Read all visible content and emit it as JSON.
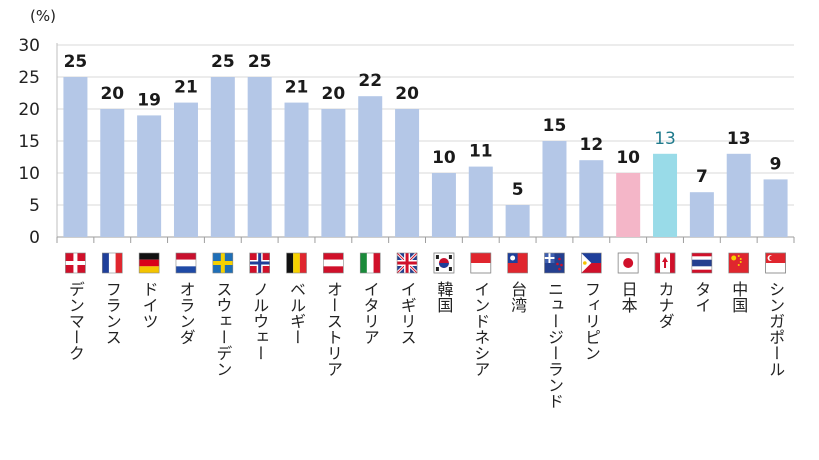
{
  "chart_data": {
    "type": "bar",
    "unit_label": "(%)",
    "ylim": [
      0,
      30
    ],
    "yticks": [
      0,
      5,
      10,
      15,
      20,
      25,
      30
    ],
    "grid": true,
    "categories": [
      "デンマーク",
      "フランス",
      "ドイツ",
      "オランダ",
      "スウェーデン",
      "ノルウェー",
      "ベルギー",
      "オーストリア",
      "イタリア",
      "イギリス",
      "韓国",
      "インドネシア",
      "台湾",
      "ニュージーランド",
      "フィリピン",
      "日本",
      "カナダ",
      "タイ",
      "中国",
      "シンガポール"
    ],
    "values": [
      25,
      20,
      19,
      21,
      25,
      25,
      21,
      20,
      22,
      20,
      10,
      11,
      5,
      15,
      12,
      10,
      13,
      7,
      13,
      9
    ],
    "value_labels": [
      "25",
      "20",
      "19",
      "21",
      "25",
      "25",
      "21",
      "20",
      "22",
      "20",
      "10",
      "11",
      "5",
      "15",
      "12",
      "10",
      "13",
      "7",
      "13",
      "9"
    ],
    "bar_colors": [
      "#b4c7e7",
      "#b4c7e7",
      "#b4c7e7",
      "#b4c7e7",
      "#b4c7e7",
      "#b4c7e7",
      "#b4c7e7",
      "#b4c7e7",
      "#b4c7e7",
      "#b4c7e7",
      "#b4c7e7",
      "#b4c7e7",
      "#b4c7e7",
      "#b4c7e7",
      "#b4c7e7",
      "#f4b6c8",
      "#99dbe8",
      "#b4c7e7",
      "#b4c7e7",
      "#b4c7e7"
    ],
    "highlight_label_color": "#1f7a8c",
    "flag_icons": [
      "denmark-flag-icon",
      "france-flag-icon",
      "germany-flag-icon",
      "netherlands-flag-icon",
      "sweden-flag-icon",
      "norway-flag-icon",
      "belgium-flag-icon",
      "austria-flag-icon",
      "italy-flag-icon",
      "uk-flag-icon",
      "korea-flag-icon",
      "indonesia-flag-icon",
      "taiwan-flag-icon",
      "new-zealand-flag-icon",
      "philippines-flag-icon",
      "japan-flag-icon",
      "canada-flag-icon",
      "thailand-flag-icon",
      "china-flag-icon",
      "singapore-flag-icon"
    ]
  }
}
